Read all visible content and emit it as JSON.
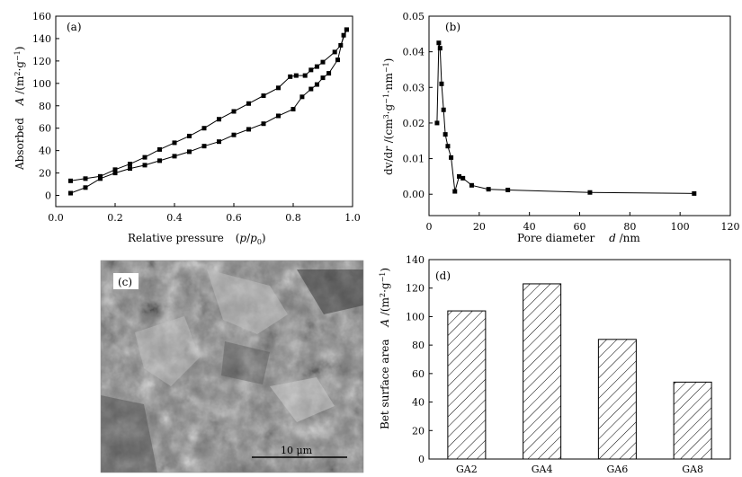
{
  "chart_data": [
    {
      "id": "a",
      "type": "line",
      "panel_label": "(a)",
      "xlabel_parts": [
        "Relative pressure",
        "(",
        "p",
        "/",
        "p",
        "0",
        ")"
      ],
      "ylabel_parts": [
        "Absorbed",
        "A",
        " /(m",
        "2",
        "·g",
        "−1",
        ")"
      ],
      "xlim": [
        0,
        1.0
      ],
      "ylim": [
        -10,
        160
      ],
      "xticks": [
        "0.0",
        "0.2",
        "0.4",
        "0.6",
        "0.8",
        "1.0"
      ],
      "yticks": [
        "0",
        "20",
        "40",
        "60",
        "80",
        "100",
        "120",
        "140",
        "160"
      ],
      "series": [
        {
          "role": "adsorption",
          "x": [
            0.05,
            0.1,
            0.15,
            0.2,
            0.25,
            0.3,
            0.35,
            0.4,
            0.45,
            0.5,
            0.55,
            0.6,
            0.65,
            0.7,
            0.75,
            0.8,
            0.83,
            0.86,
            0.88,
            0.9,
            0.92,
            0.95,
            0.97,
            0.98
          ],
          "y": [
            2,
            7,
            15,
            20,
            24,
            27,
            31,
            35,
            39,
            44,
            48,
            54,
            59,
            64,
            71,
            77,
            88,
            95,
            99,
            105,
            109,
            121,
            143,
            148
          ]
        },
        {
          "role": "desorption",
          "x": [
            0.98,
            0.96,
            0.94,
            0.9,
            0.88,
            0.86,
            0.84,
            0.81,
            0.79,
            0.75,
            0.7,
            0.65,
            0.6,
            0.55,
            0.5,
            0.45,
            0.4,
            0.35,
            0.3,
            0.25,
            0.2,
            0.15,
            0.1,
            0.05
          ],
          "y": [
            148,
            134,
            128,
            119,
            115,
            112,
            107,
            107,
            106,
            96,
            89,
            82,
            75,
            68,
            60,
            53,
            47,
            41,
            34,
            28,
            23,
            17,
            15,
            13
          ]
        }
      ]
    },
    {
      "id": "b",
      "type": "line",
      "panel_label": "(b)",
      "xlabel_parts": [
        "Pore diameter",
        "d",
        " /nm"
      ],
      "ylabel_parts": [
        "dv/d",
        "r",
        " /(cm",
        "3",
        "·g",
        "−1",
        "·nm",
        "−1",
        ")"
      ],
      "xlim": [
        0,
        120
      ],
      "ylim": [
        -0.006,
        0.05
      ],
      "xticks": [
        "0",
        "20",
        "40",
        "60",
        "80",
        "100",
        "120"
      ],
      "yticks": [
        "0.00",
        "0.01",
        "0.02",
        "0.03",
        "0.04",
        "0.05"
      ],
      "series": [
        {
          "role": "pore-size",
          "x": [
            3.2,
            3.9,
            4.4,
            5.0,
            5.8,
            6.5,
            7.5,
            8.8,
            10.3,
            12.0,
            13.5,
            17.0,
            23.7,
            31.4,
            64.1,
            105.6
          ],
          "y": [
            0.02,
            0.0425,
            0.041,
            0.031,
            0.0237,
            0.0168,
            0.0135,
            0.0103,
            0.0008,
            0.005,
            0.0045,
            0.0025,
            0.0014,
            0.0012,
            0.0005,
            0.0002
          ]
        }
      ]
    },
    {
      "id": "d",
      "type": "bar",
      "panel_label": "(d)",
      "categories": [
        "GA2",
        "GA4",
        "GA6",
        "GA8"
      ],
      "values": [
        104,
        123,
        84,
        54
      ],
      "ylabel_parts": [
        "Bet surface area",
        "A",
        " /(m",
        "2",
        "·g",
        "−1",
        ")"
      ],
      "ylim": [
        0,
        140
      ],
      "yticks": [
        "0",
        "20",
        "40",
        "60",
        "80",
        "100",
        "120",
        "140"
      ]
    }
  ],
  "micrograph": {
    "panel_label": "(c)",
    "scale_bar": "10 μm",
    "tone": "#7a7a7a"
  }
}
